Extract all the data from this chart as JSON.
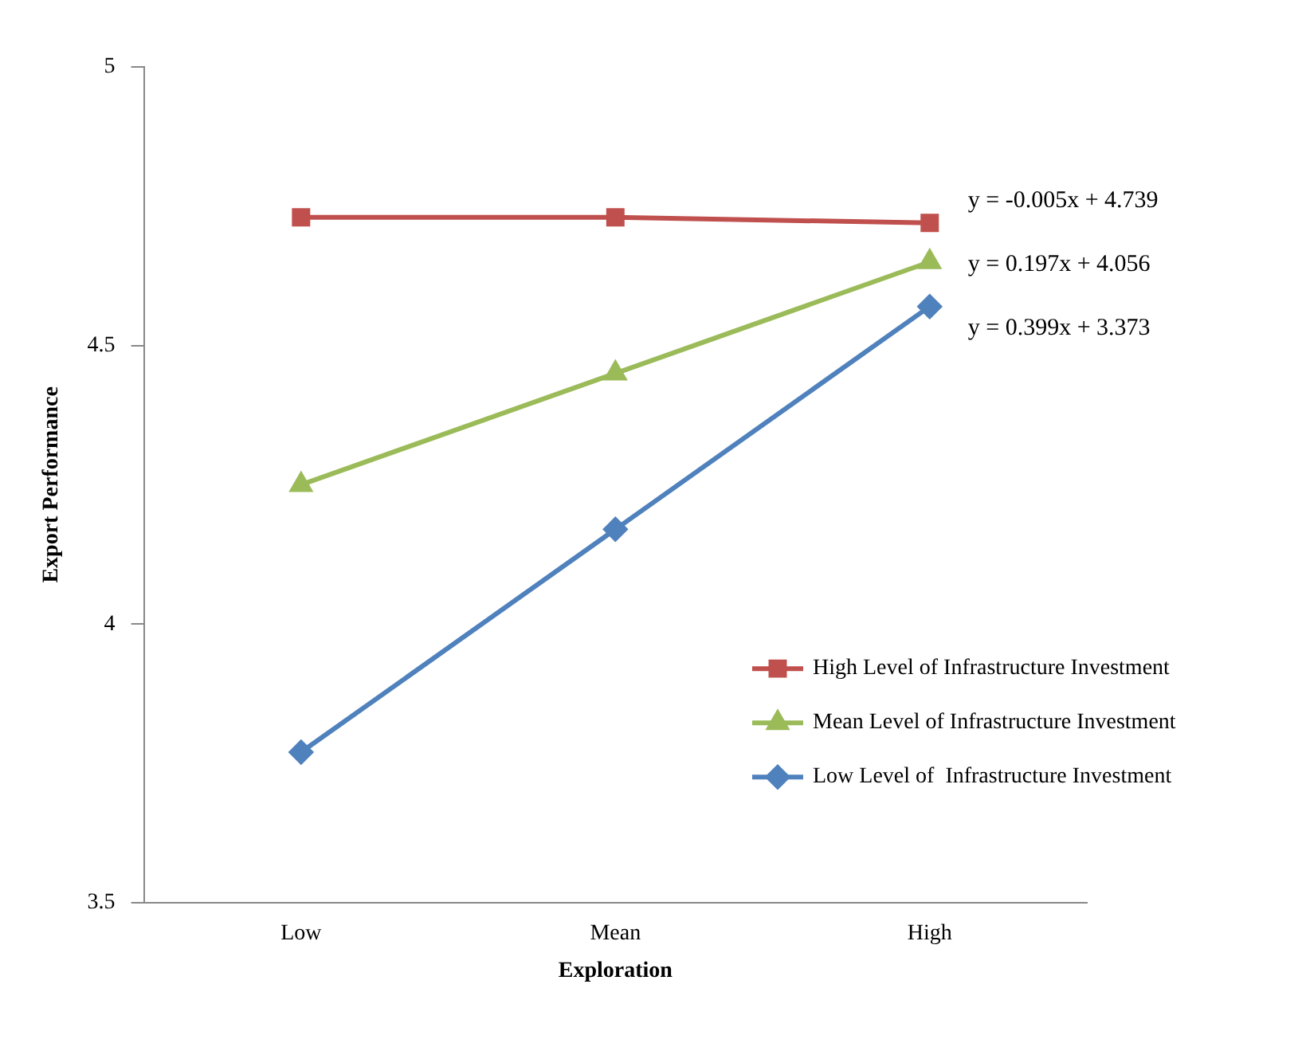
{
  "chart_data": {
    "type": "line",
    "xlabel": "Exploration",
    "ylabel": "Export Performance",
    "categories": [
      "Low",
      "Mean",
      "High"
    ],
    "series": [
      {
        "name": "High Level of Infrastructure Investment",
        "color": "#c0504d",
        "marker": "square",
        "values": [
          4.73,
          4.73,
          4.72
        ]
      },
      {
        "name": "Mean Level of Infrastructure Investment",
        "color": "#9bbb59",
        "marker": "triangle",
        "values": [
          4.25,
          4.45,
          4.65
        ]
      },
      {
        "name": "Low Level of  Infrastructure Investment",
        "color": "#4f81bd",
        "marker": "diamond",
        "values": [
          3.77,
          4.17,
          4.57
        ]
      }
    ],
    "ylim": [
      3.5,
      5
    ],
    "yticks": [
      3.5,
      4,
      4.5,
      5
    ],
    "grid": false,
    "legend": "right",
    "line_style": "solid",
    "annotations": [
      "y = -0.005x + 4.739",
      "y = 0.197x + 4.056",
      "y = 0.399x + 3.373"
    ]
  }
}
